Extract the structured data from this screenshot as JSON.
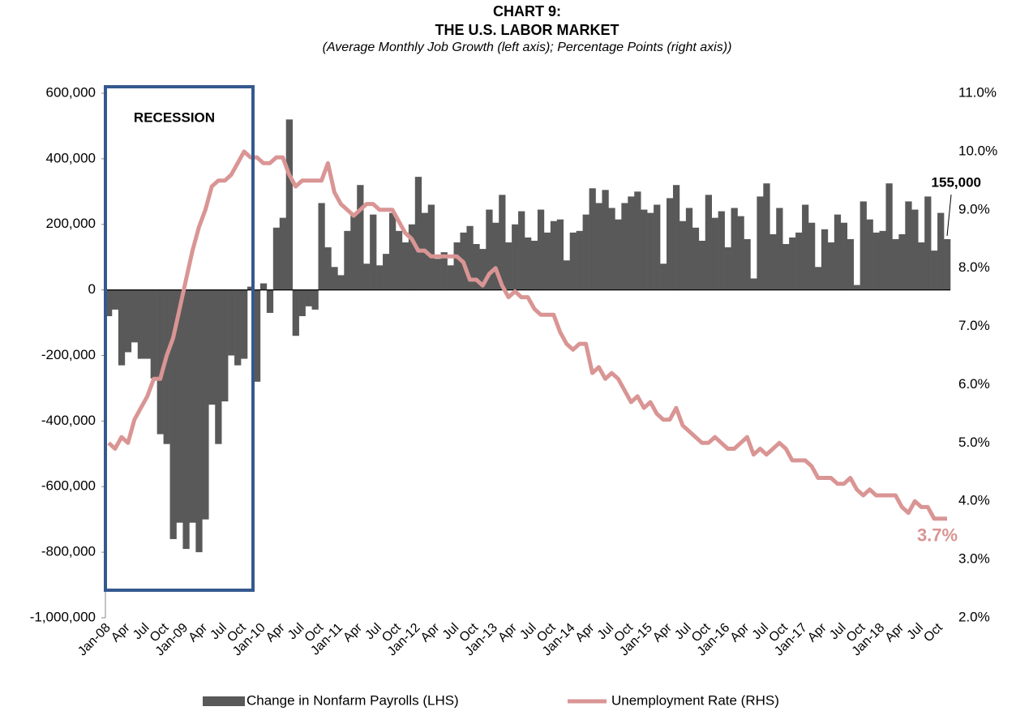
{
  "chart_data": {
    "type": "bar-line",
    "title": "CHART 9:",
    "subtitle": "THE U.S. LABOR MARKET",
    "note": "(Average Monthly Job Growth (left axis); Percentage Points (right axis))",
    "annotations": [
      "RECESSION"
    ],
    "categories": [
      "Jan-08",
      null,
      null,
      "Apr",
      null,
      null,
      "Jul",
      null,
      null,
      "Oct",
      null,
      null,
      "Jan-09",
      null,
      null,
      "Apr",
      null,
      null,
      "Jul",
      null,
      null,
      "Oct",
      null,
      null,
      "Jan-10",
      null,
      null,
      "Apr",
      null,
      null,
      "Jul",
      null,
      null,
      "Oct",
      null,
      null,
      "Jan-11",
      null,
      null,
      "Apr",
      null,
      null,
      "Jul",
      null,
      null,
      "Oct",
      null,
      null,
      "Jan-12",
      null,
      null,
      "Apr",
      null,
      null,
      "Jul",
      null,
      null,
      "Oct",
      null,
      null,
      "Jan-13",
      null,
      null,
      "Apr",
      null,
      null,
      "Jul",
      null,
      null,
      "Oct",
      null,
      null,
      "Jan-14",
      null,
      null,
      "Apr",
      null,
      null,
      "Jul",
      null,
      null,
      "Oct",
      null,
      null,
      "Jan-15",
      null,
      null,
      "Apr",
      null,
      null,
      "Jul",
      null,
      null,
      "Oct",
      null,
      null,
      "Jan-16",
      null,
      null,
      "Apr",
      null,
      null,
      "Jul",
      null,
      null,
      "Oct",
      null,
      null,
      "Jan-17",
      null,
      null,
      "Apr",
      null,
      null,
      "Jul",
      null,
      null,
      "Oct",
      null,
      null,
      "Jan-18",
      null,
      null,
      "Apr",
      null,
      null,
      "Jul",
      null,
      null,
      "Oct",
      null
    ],
    "series": [
      {
        "name": "Change in Nonfarm Payrolls (LHS)",
        "type": "bar",
        "color": "#595959",
        "axis": "y",
        "values": [
          -80000,
          -60000,
          -230000,
          -190000,
          -160000,
          -210000,
          -210000,
          -270000,
          -440000,
          -470000,
          -760000,
          -710000,
          -790000,
          -710000,
          -800000,
          -700000,
          -350000,
          -470000,
          -340000,
          -200000,
          -230000,
          -210000,
          10000,
          -280000,
          20000,
          -70000,
          190000,
          220000,
          520000,
          -140000,
          -80000,
          -50000,
          -60000,
          265000,
          130000,
          70000,
          45000,
          180000,
          235000,
          320000,
          80000,
          230000,
          75000,
          110000,
          235000,
          180000,
          145000,
          200000,
          345000,
          235000,
          260000,
          95000,
          115000,
          75000,
          145000,
          175000,
          195000,
          140000,
          125000,
          245000,
          205000,
          290000,
          145000,
          200000,
          240000,
          160000,
          150000,
          245000,
          175000,
          210000,
          215000,
          90000,
          175000,
          180000,
          230000,
          310000,
          265000,
          305000,
          250000,
          215000,
          265000,
          285000,
          300000,
          245000,
          235000,
          260000,
          80000,
          280000,
          320000,
          210000,
          250000,
          190000,
          150000,
          290000,
          220000,
          240000,
          130000,
          250000,
          225000,
          155000,
          35000,
          285000,
          325000,
          170000,
          250000,
          140000,
          160000,
          175000,
          260000,
          205000,
          70000,
          185000,
          145000,
          230000,
          205000,
          155000,
          15000,
          270000,
          215000,
          175000,
          180000,
          325000,
          155000,
          170000,
          270000,
          245000,
          145000,
          285000,
          120000,
          235000,
          155000
        ],
        "value_labels": [
          null,
          null,
          null,
          null,
          null,
          null,
          null,
          null,
          null,
          null,
          null,
          null,
          null,
          null,
          null,
          null,
          null,
          null,
          null,
          null,
          null,
          null,
          null,
          null,
          null,
          null,
          null,
          null,
          null,
          null,
          null,
          null,
          null,
          null,
          null,
          null,
          null,
          null,
          null,
          null,
          null,
          null,
          null,
          null,
          null,
          null,
          null,
          null,
          null,
          null,
          null,
          null,
          null,
          null,
          null,
          null,
          null,
          null,
          null,
          null,
          null,
          null,
          null,
          null,
          null,
          null,
          null,
          null,
          null,
          null,
          null,
          null,
          null,
          null,
          null,
          null,
          null,
          null,
          null,
          null,
          null,
          null,
          null,
          null,
          null,
          null,
          null,
          null,
          null,
          null,
          null,
          null,
          null,
          null,
          null,
          null,
          null,
          null,
          null,
          null,
          null,
          null,
          null,
          null,
          null,
          null,
          null,
          null,
          null,
          null,
          null,
          null,
          null,
          null,
          null,
          null,
          null,
          null,
          null,
          null,
          null,
          null,
          null,
          null,
          null,
          null,
          null,
          null,
          null,
          null,
          "155,000"
        ]
      },
      {
        "name": "Unemployment Rate (RHS)",
        "type": "line",
        "color": "#d99594",
        "axis": "y2",
        "values": [
          5.0,
          4.9,
          5.1,
          5.0,
          5.4,
          5.6,
          5.8,
          6.1,
          6.1,
          6.5,
          6.8,
          7.3,
          7.8,
          8.3,
          8.7,
          9.0,
          9.4,
          9.5,
          9.5,
          9.6,
          9.8,
          10.0,
          9.9,
          9.9,
          9.8,
          9.8,
          9.9,
          9.9,
          9.6,
          9.4,
          9.5,
          9.5,
          9.5,
          9.5,
          9.8,
          9.3,
          9.1,
          9.0,
          8.9,
          9.0,
          9.1,
          9.1,
          9.0,
          9.0,
          9.0,
          8.8,
          8.6,
          8.5,
          8.3,
          8.3,
          8.2,
          8.2,
          8.2,
          8.2,
          8.2,
          8.1,
          7.8,
          7.8,
          7.7,
          7.9,
          8.0,
          7.7,
          7.5,
          7.6,
          7.5,
          7.5,
          7.3,
          7.2,
          7.2,
          7.2,
          6.9,
          6.7,
          6.6,
          6.7,
          6.7,
          6.2,
          6.3,
          6.1,
          6.2,
          6.1,
          5.9,
          5.7,
          5.8,
          5.6,
          5.7,
          5.5,
          5.4,
          5.4,
          5.6,
          5.3,
          5.2,
          5.1,
          5.0,
          5.0,
          5.1,
          5.0,
          4.9,
          4.9,
          5.0,
          5.1,
          4.8,
          4.9,
          4.8,
          4.9,
          5.0,
          4.9,
          4.7,
          4.7,
          4.7,
          4.6,
          4.4,
          4.4,
          4.4,
          4.3,
          4.3,
          4.4,
          4.2,
          4.1,
          4.2,
          4.1,
          4.1,
          4.1,
          4.1,
          3.9,
          3.8,
          4.0,
          3.9,
          3.9,
          3.7,
          3.7,
          3.7
        ],
        "value_labels": [
          null,
          null,
          null,
          null,
          null,
          null,
          null,
          null,
          null,
          null,
          null,
          null,
          null,
          null,
          null,
          null,
          null,
          null,
          null,
          null,
          null,
          null,
          null,
          null,
          null,
          null,
          null,
          null,
          null,
          null,
          null,
          null,
          null,
          null,
          null,
          null,
          null,
          null,
          null,
          null,
          null,
          null,
          null,
          null,
          null,
          null,
          null,
          null,
          null,
          null,
          null,
          null,
          null,
          null,
          null,
          null,
          null,
          null,
          null,
          null,
          null,
          null,
          null,
          null,
          null,
          null,
          null,
          null,
          null,
          null,
          null,
          null,
          null,
          null,
          null,
          null,
          null,
          null,
          null,
          null,
          null,
          null,
          null,
          null,
          null,
          null,
          null,
          null,
          null,
          null,
          null,
          null,
          null,
          null,
          null,
          null,
          null,
          null,
          null,
          null,
          null,
          null,
          null,
          null,
          null,
          null,
          null,
          null,
          null,
          null,
          null,
          null,
          null,
          null,
          null,
          null,
          null,
          null,
          null,
          null,
          null,
          null,
          null,
          null,
          null,
          null,
          null,
          null,
          null,
          null,
          "3.7%"
        ]
      }
    ],
    "ylim": [
      -1000000,
      600000
    ],
    "yticks": [
      {
        "value": -1000000,
        "label": "-1,000,000"
      },
      {
        "value": -800000,
        "label": "-800,000"
      },
      {
        "value": -600000,
        "label": "-600,000"
      },
      {
        "value": -400000,
        "label": "-400,000"
      },
      {
        "value": -200000,
        "label": "-200,000"
      },
      0,
      {
        "value": 200000,
        "label": "200,000"
      },
      {
        "value": 400000,
        "label": "400,000"
      },
      {
        "value": 600000,
        "label": "600,000"
      }
    ],
    "y2lim": [
      2,
      11
    ],
    "y2ticks": [
      {
        "value": 2,
        "label": "2.0%"
      },
      {
        "value": 3,
        "label": "3.0%"
      },
      {
        "value": 4,
        "label": "4.0%"
      },
      {
        "value": 5,
        "label": "5.0%"
      },
      {
        "value": 6,
        "label": "6.0%"
      },
      {
        "value": 7,
        "label": "7.0%"
      },
      {
        "value": 8,
        "label": "8.0%"
      },
      {
        "value": 9,
        "label": "9.0%"
      },
      {
        "value": 10,
        "label": "10.0%"
      },
      {
        "value": 11,
        "label": "11.0%"
      }
    ],
    "legend": "bottom"
  }
}
